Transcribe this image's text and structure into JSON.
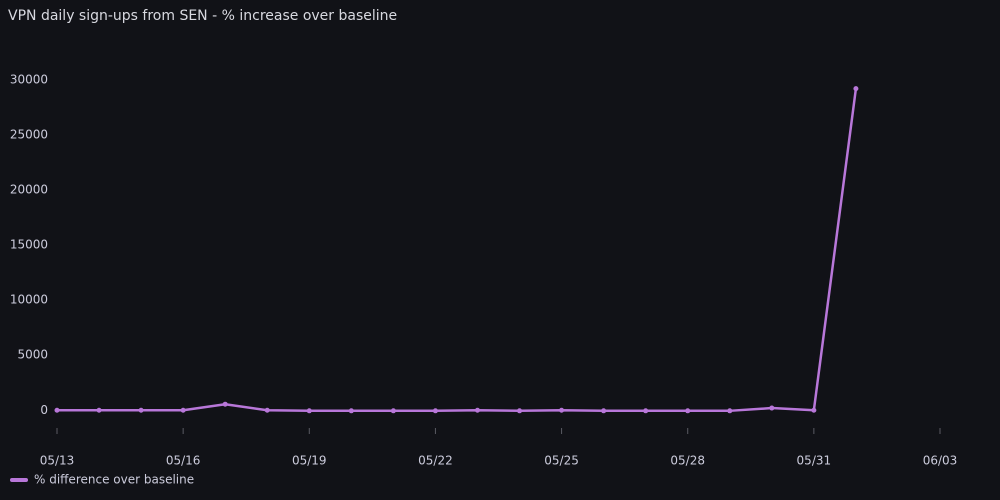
{
  "chart_data": {
    "type": "line",
    "title": "VPN daily sign-ups from SEN - % increase over baseline",
    "x": [
      "05/13",
      "05/14",
      "05/15",
      "05/16",
      "05/17",
      "05/18",
      "05/19",
      "05/20",
      "05/21",
      "05/22",
      "05/23",
      "05/24",
      "05/25",
      "05/26",
      "05/27",
      "05/28",
      "05/29",
      "05/30",
      "05/31",
      "06/01"
    ],
    "series": [
      {
        "name": "% difference over baseline",
        "color": "#b877d9",
        "values": [
          0,
          0,
          0,
          0,
          550,
          0,
          -50,
          -50,
          -50,
          -50,
          0,
          -50,
          0,
          -50,
          -50,
          -50,
          -50,
          200,
          0,
          29200
        ]
      }
    ],
    "xlim": [
      "05/13",
      "06/03"
    ],
    "xticks": [
      "05/13",
      "05/16",
      "05/19",
      "05/22",
      "05/25",
      "05/28",
      "05/31",
      "06/03"
    ],
    "ylim": [
      -2700,
      31800
    ],
    "yticks": [
      0,
      5000,
      10000,
      15000,
      20000,
      25000,
      30000
    ],
    "grid": false,
    "legend": "bottom-left"
  }
}
